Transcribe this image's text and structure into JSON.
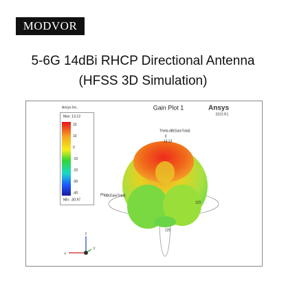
{
  "logo": "MODVOR",
  "title": {
    "line1": "5-6G 14dBi RHCP Directional Antenna",
    "line2": "(HFSS 3D Simulation)"
  },
  "plot": {
    "vendor": "Ansys Inc.",
    "plot_title": "Gain Plot 1",
    "brand": "Ansys",
    "version": "2023 R1",
    "legend": {
      "max": "Max: 13.13",
      "ticks": [
        "20",
        "10",
        "0",
        "-10",
        "-20",
        "-30",
        "-40"
      ],
      "min": "Min: -30.97"
    },
    "labels": {
      "theta": "Theta",
      "quantity": "dB(GainTotal)",
      "zero": "0",
      "peak": "13.13",
      "phi": "Phi",
      "phi_quantity": "dB(GainTotal)",
      "ring_right": "120",
      "ring_bottom": "120"
    },
    "axes": {
      "x": "x",
      "y": "y",
      "z": "z"
    }
  }
}
